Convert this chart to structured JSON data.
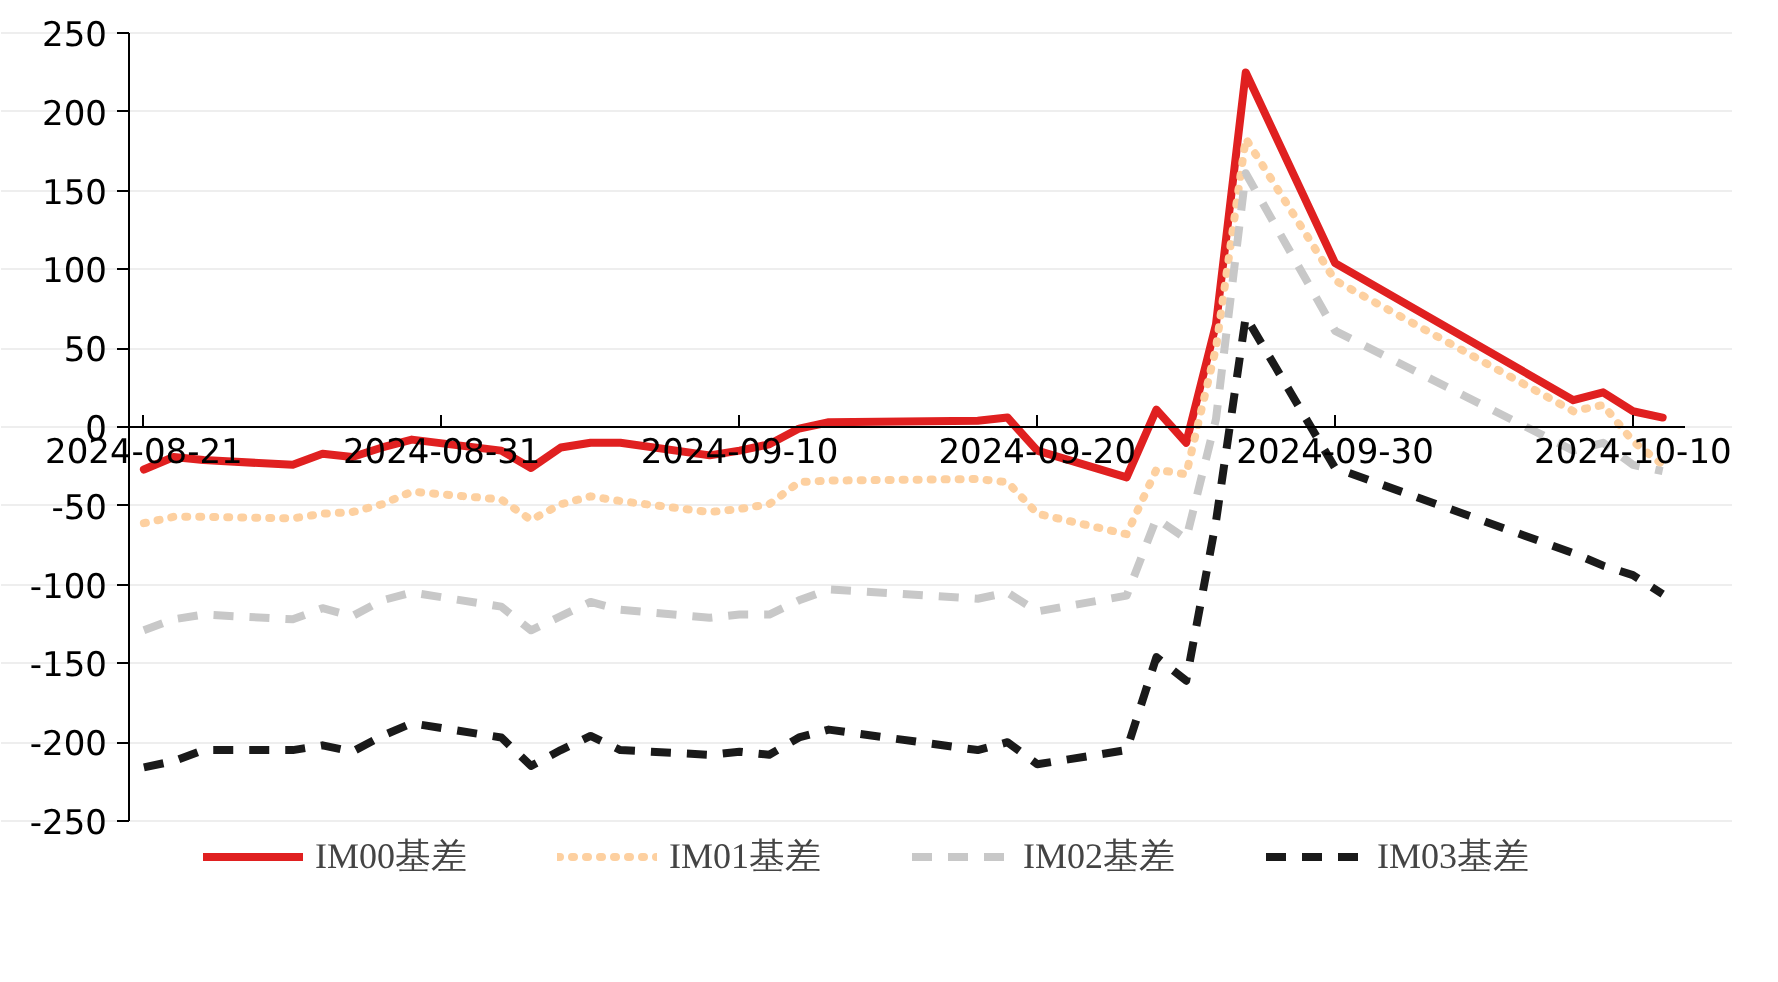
{
  "chart_data": {
    "type": "line",
    "x": [
      "2024-08-21",
      "2024-08-22",
      "2024-08-23",
      "2024-08-26",
      "2024-08-27",
      "2024-08-28",
      "2024-08-29",
      "2024-08-30",
      "2024-09-02",
      "2024-09-03",
      "2024-09-04",
      "2024-09-05",
      "2024-09-06",
      "2024-09-09",
      "2024-09-10",
      "2024-09-11",
      "2024-09-12",
      "2024-09-13",
      "2024-09-18",
      "2024-09-19",
      "2024-09-20",
      "2024-09-23",
      "2024-09-24",
      "2024-09-25",
      "2024-09-26",
      "2024-09-27",
      "2024-09-30",
      "2024-10-08",
      "2024-10-09",
      "2024-10-10",
      "2024-10-11"
    ],
    "series": [
      {
        "name": "IM00基差",
        "color": "#e02020",
        "line_style": "solid",
        "values": [
          -27,
          -19,
          -21,
          -24,
          -17,
          -19,
          -13,
          -8,
          -15,
          -26,
          -13,
          -10,
          -10,
          -18,
          -15,
          -11,
          -1,
          3,
          4,
          6,
          -15,
          -32,
          11,
          -10,
          65,
          225,
          104,
          17,
          22,
          10,
          6
        ]
      },
      {
        "name": "IM01基差",
        "color": "#fdd0a0",
        "line_style": "dotted",
        "values": [
          -61,
          -57,
          -57,
          -58,
          -55,
          -54,
          -49,
          -41,
          -46,
          -59,
          -49,
          -44,
          -47,
          -54,
          -52,
          -49,
          -35,
          -34,
          -33,
          -35,
          -55,
          -68,
          -27,
          -30,
          50,
          183,
          93,
          10,
          14,
          -9,
          -24
        ]
      },
      {
        "name": "IM02基差",
        "color": "#c8c8c8",
        "line_style": "dashed",
        "values": [
          -129,
          -122,
          -119,
          -122,
          -115,
          -120,
          -110,
          -105,
          -114,
          -129,
          -120,
          -111,
          -116,
          -121,
          -119,
          -119,
          -110,
          -103,
          -109,
          -105,
          -117,
          -107,
          -58,
          -71,
          5,
          161,
          61,
          -15,
          -10,
          -24,
          -28
        ]
      },
      {
        "name": "IM03基差",
        "color": "#1a1a1a",
        "line_style": "dashed",
        "values": [
          -216,
          -212,
          -205,
          -205,
          -202,
          -206,
          -196,
          -188,
          -197,
          -215,
          -205,
          -196,
          -205,
          -208,
          -206,
          -208,
          -197,
          -192,
          -205,
          -200,
          -214,
          -205,
          -146,
          -161,
          -60,
          70,
          -26,
          -80,
          -88,
          -94,
          -106
        ]
      }
    ],
    "xlim": [
      "2024-08-20T12:00",
      "2024-10-11T18:00"
    ],
    "xticks": [
      "2024-08-21",
      "2024-08-31",
      "2024-09-10",
      "2024-09-20",
      "2024-09-30",
      "2024-10-10"
    ],
    "ylim": [
      -250,
      250
    ],
    "yticks": [
      -250,
      -200,
      -150,
      -100,
      -50,
      0,
      50,
      100,
      150,
      200,
      250
    ],
    "grid": "y",
    "legend": "bottom"
  }
}
